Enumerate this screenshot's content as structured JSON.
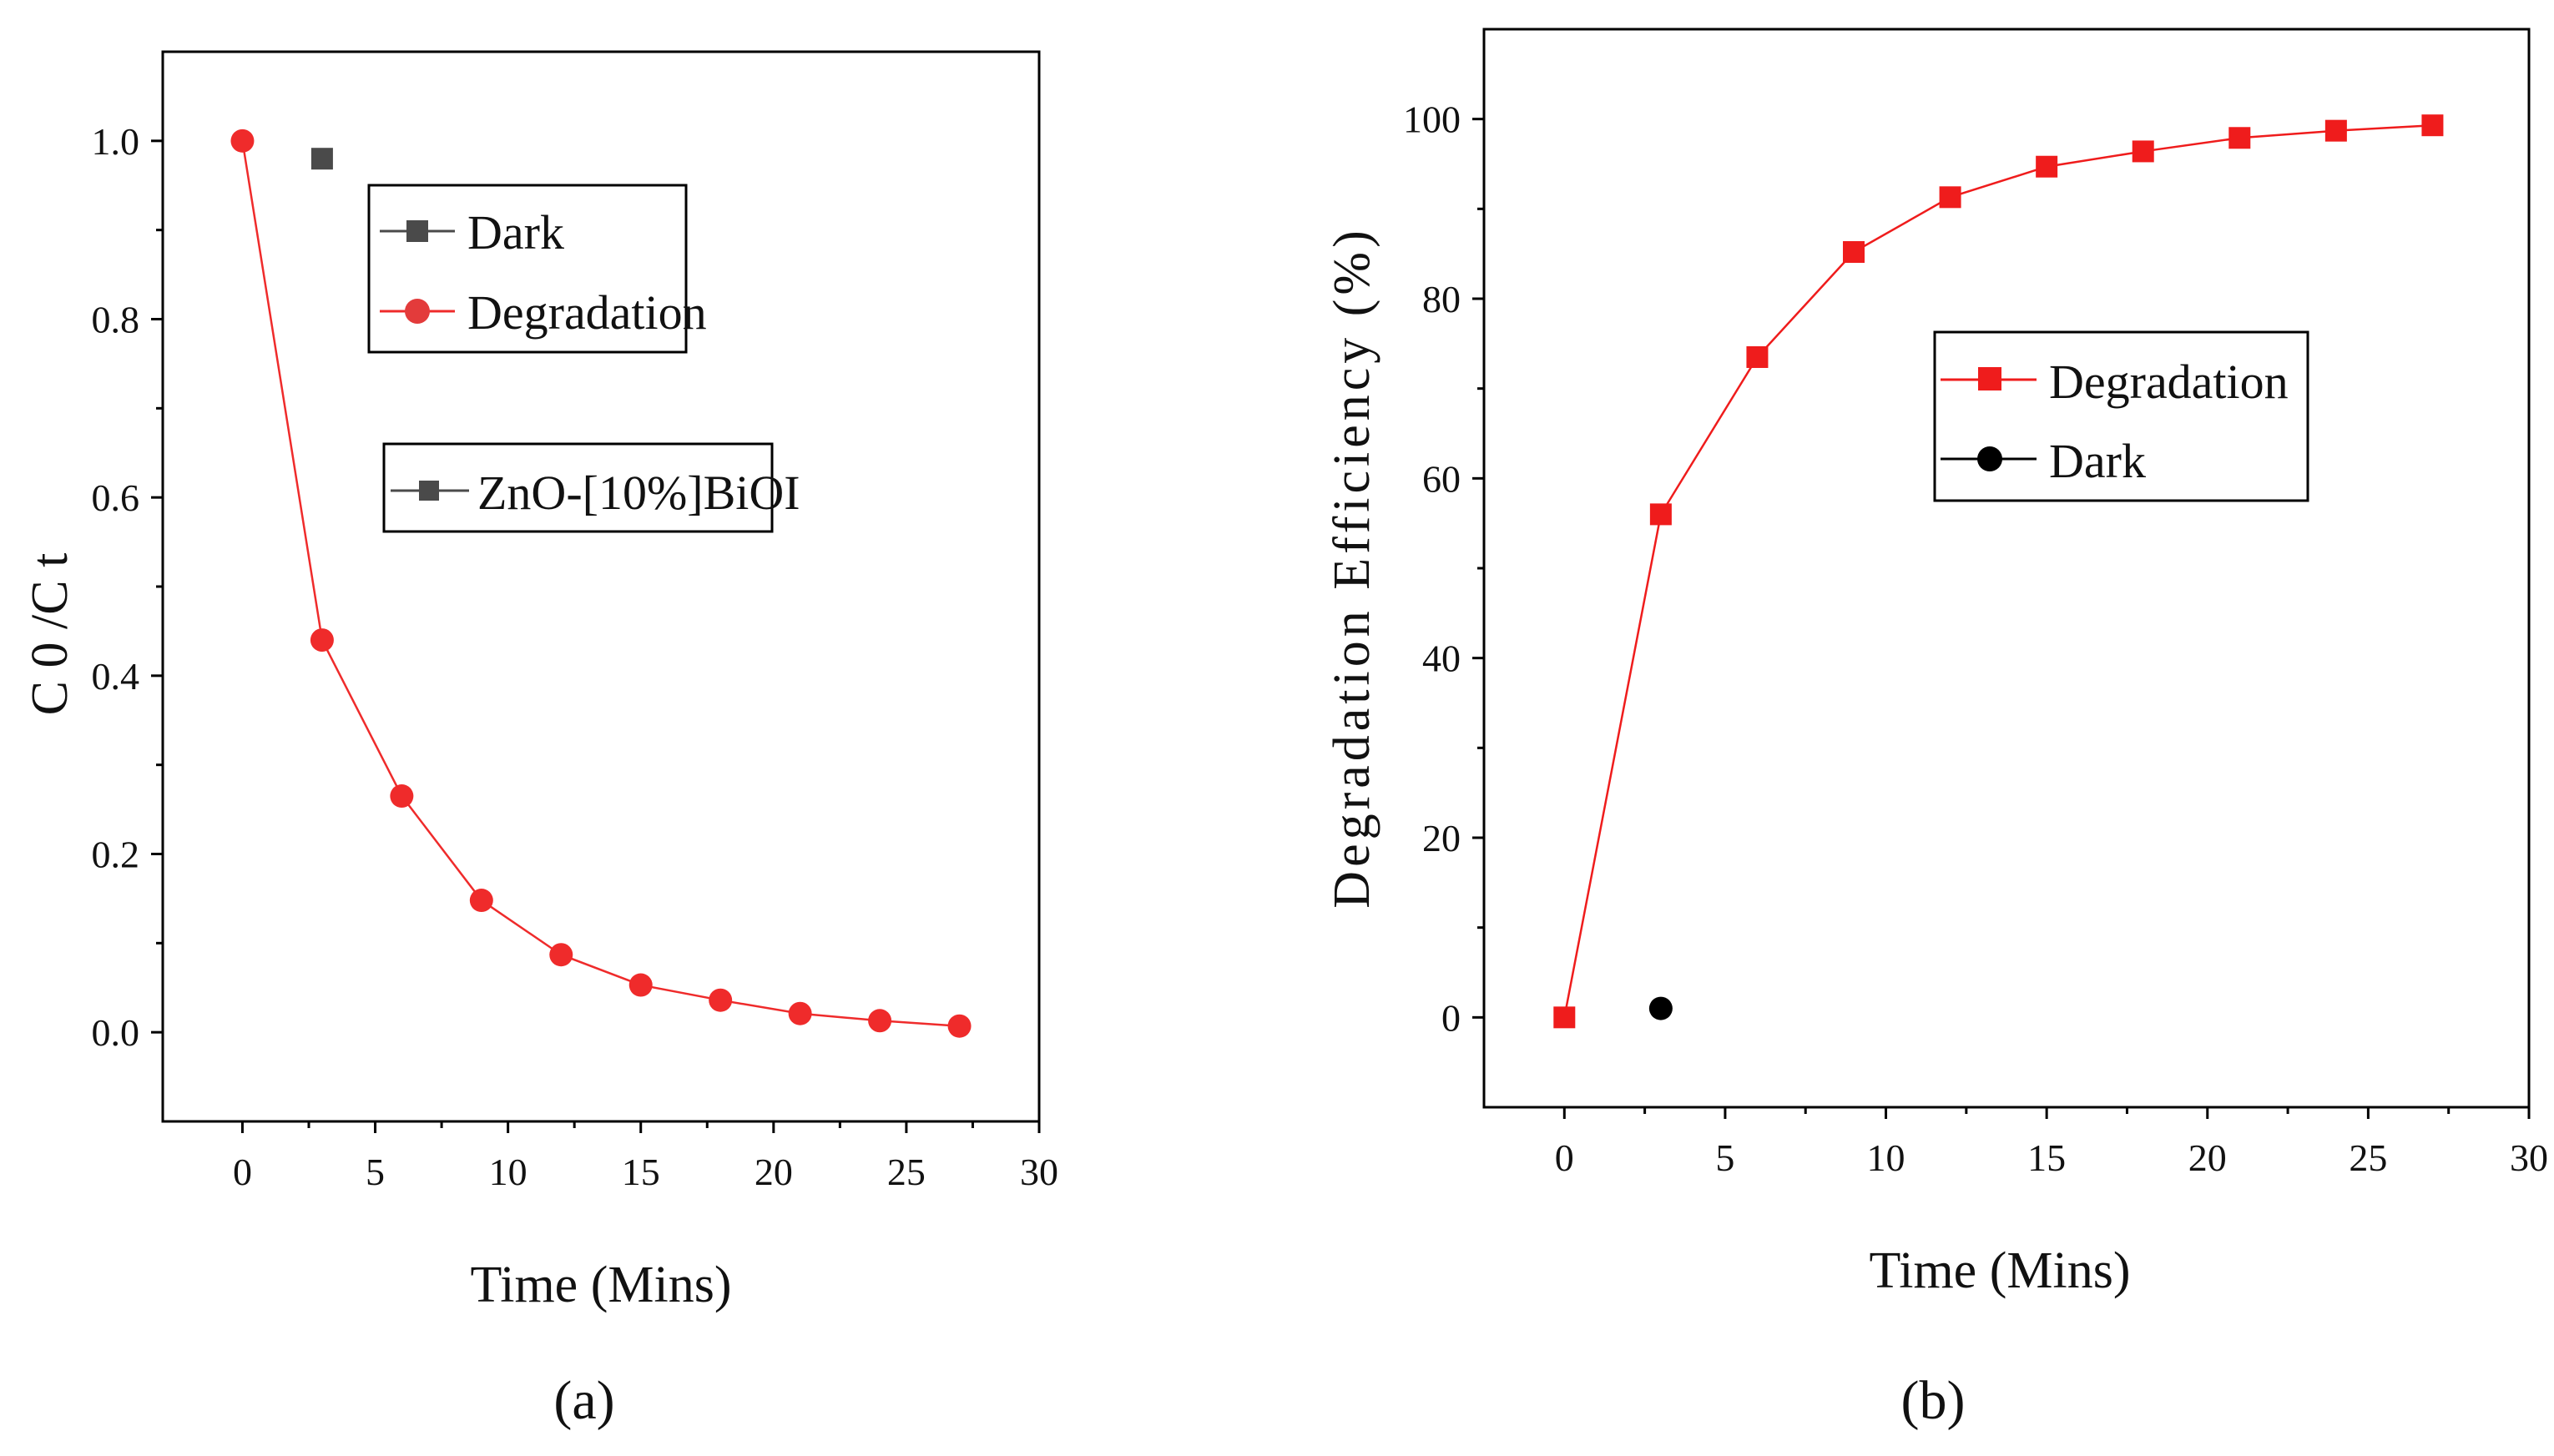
{
  "colors": {
    "red": "#ef2b2b",
    "redMarker": "#e33b3b",
    "darkGray": "#4a4a4a",
    "black": "#000000"
  },
  "panel_labels": {
    "a": "(a)",
    "b": "(b)"
  },
  "legend_a": {
    "dark": "Dark",
    "degradation": "Degradation",
    "sample": "ZnO-[10%]BiOI"
  },
  "legend_b": {
    "degradation": "Degradation",
    "dark": "Dark"
  },
  "chart_data": [
    {
      "type": "line",
      "panel": "a",
      "title": "",
      "xlabel": "Time (Mins)",
      "ylabel": "C 0 /C t",
      "xlim": [
        -3,
        30
      ],
      "ylim": [
        -0.1,
        1.1
      ],
      "xticks": [
        0,
        5,
        10,
        15,
        20,
        25,
        30
      ],
      "yticks": [
        0.0,
        0.2,
        0.4,
        0.6,
        0.8,
        1.0
      ],
      "xtick_labels": [
        "0",
        "5",
        "10",
        "15",
        "20",
        "25",
        "30"
      ],
      "ytick_labels": [
        "0.0",
        "0.2",
        "0.4",
        "0.6",
        "0.8",
        "1.0"
      ],
      "series": [
        {
          "name": "Degradation",
          "marker": "circle",
          "color": "#ef2b2b",
          "x": [
            0,
            3,
            6,
            9,
            12,
            15,
            18,
            21,
            24,
            27
          ],
          "y": [
            1.0,
            0.44,
            0.265,
            0.148,
            0.087,
            0.053,
            0.036,
            0.021,
            0.013,
            0.007
          ]
        },
        {
          "name": "Dark",
          "marker": "square",
          "color": "#4a4a4a",
          "x": [
            3
          ],
          "y": [
            0.98
          ]
        }
      ]
    },
    {
      "type": "line",
      "panel": "b",
      "title": "",
      "xlabel": "Time (Mins)",
      "ylabel": "Degradation Efficiency (%)",
      "xlim": [
        -2.5,
        30
      ],
      "ylim": [
        -10,
        110
      ],
      "xticks": [
        0,
        5,
        10,
        15,
        20,
        25,
        30
      ],
      "yticks": [
        0,
        20,
        40,
        60,
        80,
        100
      ],
      "xtick_labels": [
        "0",
        "5",
        "10",
        "15",
        "20",
        "25",
        "30"
      ],
      "ytick_labels": [
        "0",
        "20",
        "40",
        "60",
        "80",
        "100"
      ],
      "series": [
        {
          "name": "Degradation",
          "marker": "square",
          "color": "#ef1c1c",
          "x": [
            0,
            3,
            6,
            9,
            12,
            15,
            18,
            21,
            24,
            27
          ],
          "y": [
            0,
            56,
            73.5,
            85.2,
            91.3,
            94.7,
            96.4,
            97.9,
            98.7,
            99.3
          ]
        },
        {
          "name": "Dark",
          "marker": "circle",
          "color": "#000000",
          "x": [
            3
          ],
          "y": [
            1
          ]
        }
      ]
    }
  ]
}
